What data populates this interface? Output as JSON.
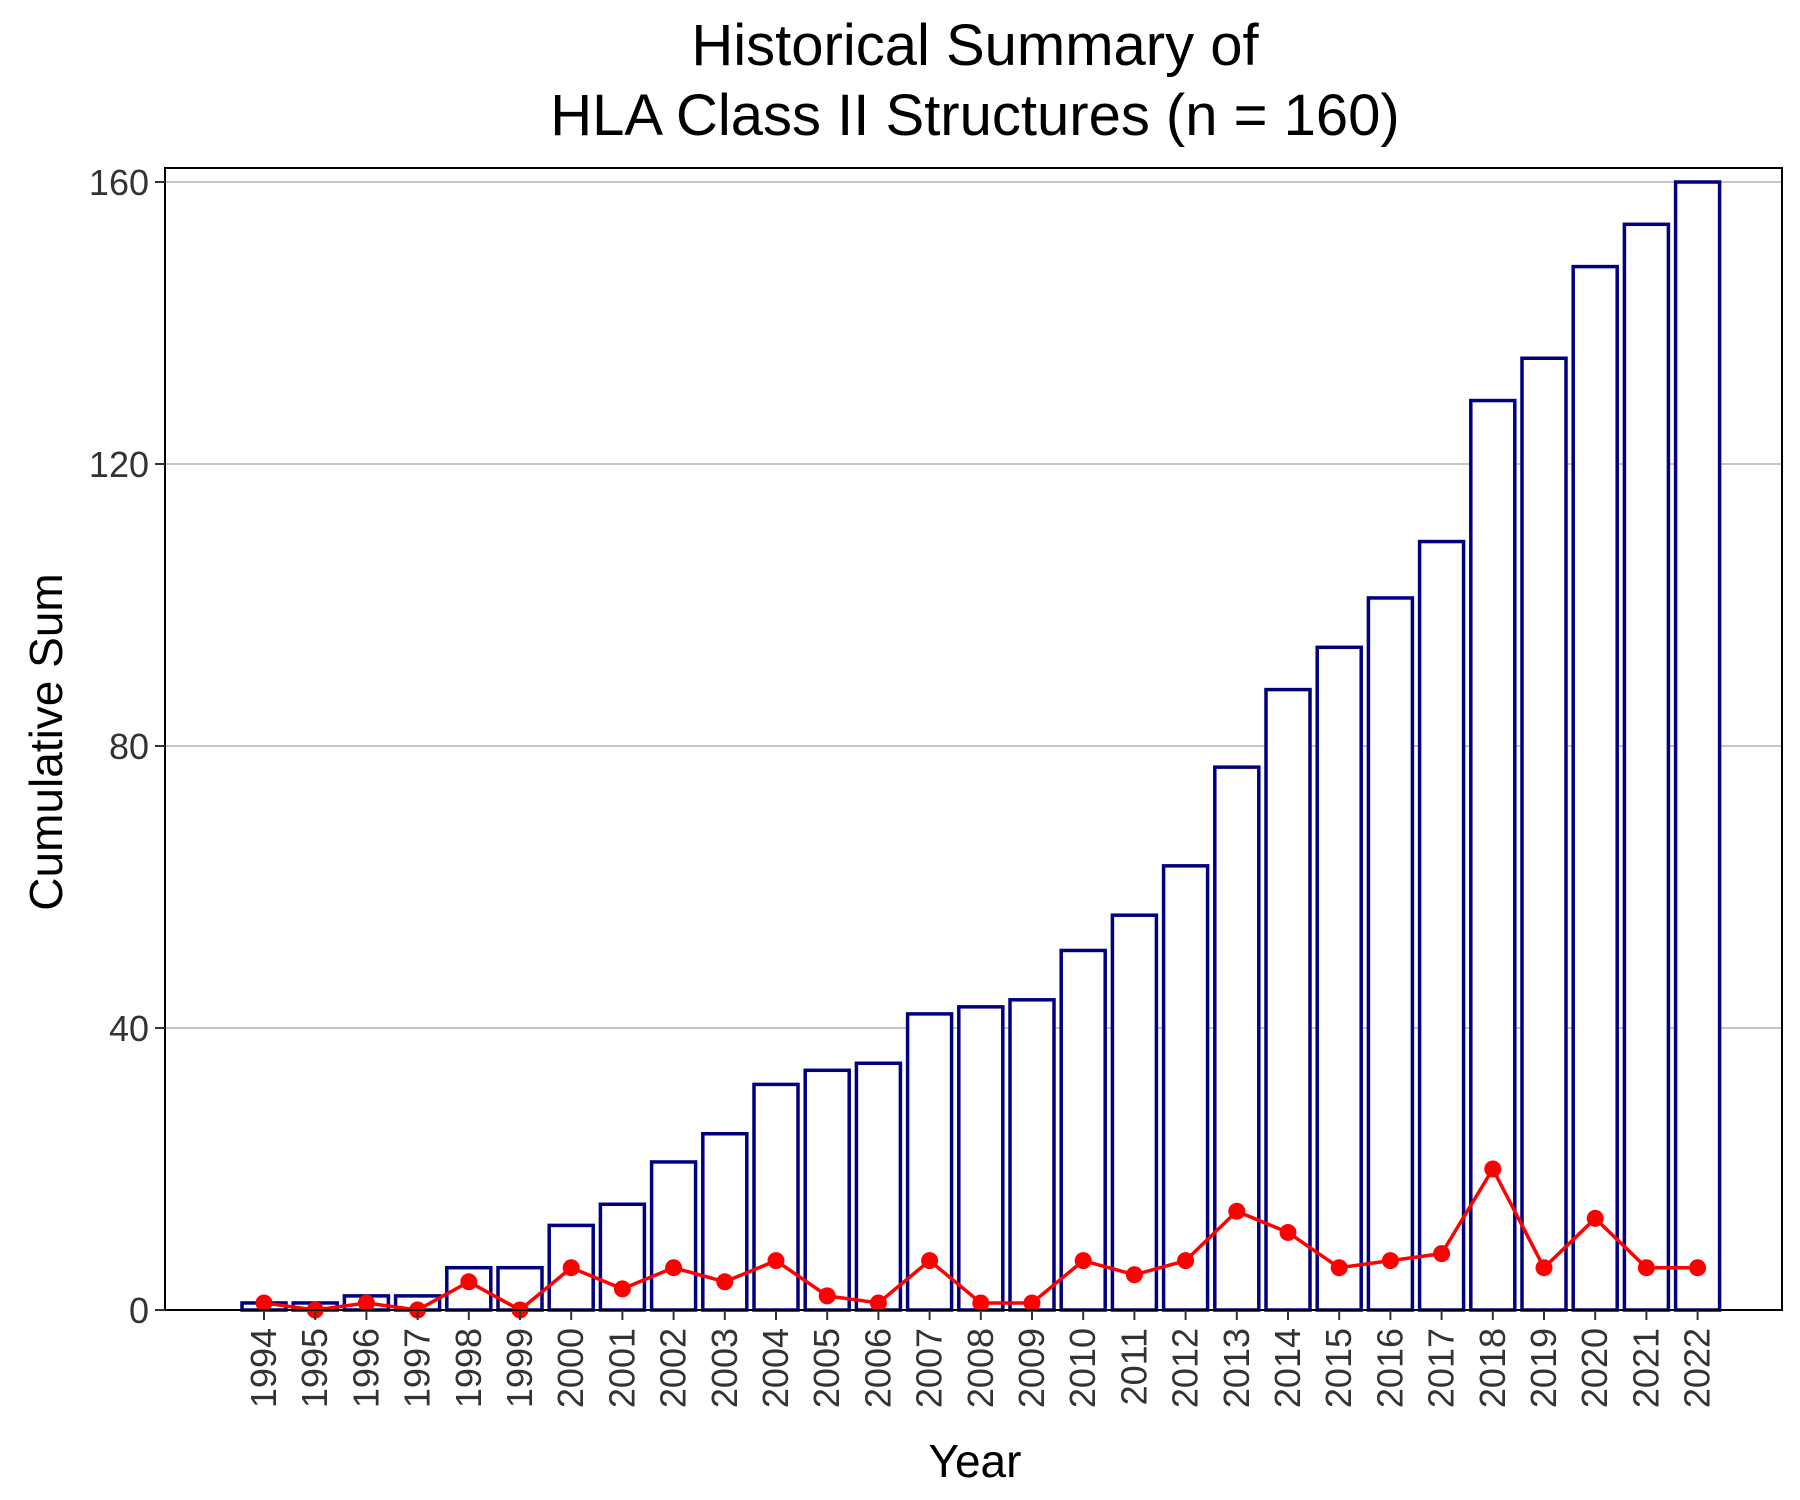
{
  "chart_data": {
    "type": "bar",
    "title_lines": [
      "Historical Summary of",
      "HLA Class II Structures (n = 160)"
    ],
    "xlabel": "Year",
    "ylabel": "Cumulative Sum",
    "categories": [
      "1994",
      "1995",
      "1996",
      "1997",
      "1998",
      "1999",
      "2000",
      "2001",
      "2002",
      "2003",
      "2004",
      "2005",
      "2006",
      "2007",
      "2008",
      "2009",
      "2010",
      "2011",
      "2012",
      "2013",
      "2014",
      "2015",
      "2016",
      "2017",
      "2018",
      "2019",
      "2020",
      "2021",
      "2022"
    ],
    "ylim": [
      0,
      160
    ],
    "yticks": [
      0,
      40,
      80,
      120,
      160
    ],
    "ytick_labels": [
      "0",
      "40",
      "80",
      "120",
      "160"
    ],
    "grid": "horizontal major gridlines",
    "series": [
      {
        "type": "bar",
        "values": [
          1,
          1,
          2,
          2,
          6,
          6,
          12,
          15,
          21,
          25,
          32,
          34,
          35,
          42,
          43,
          44,
          51,
          56,
          63,
          77,
          88,
          94,
          101,
          109,
          129,
          135,
          148,
          154,
          160
        ],
        "color": "#000080",
        "fill": "#ffffff"
      },
      {
        "type": "line",
        "values": [
          1,
          0,
          1,
          0,
          4,
          0,
          6,
          3,
          6,
          4,
          7,
          2,
          1,
          7,
          1,
          1,
          7,
          5,
          7,
          14,
          11,
          6,
          7,
          8,
          20,
          6,
          13,
          6,
          6
        ],
        "color": "#ff0000"
      }
    ]
  }
}
